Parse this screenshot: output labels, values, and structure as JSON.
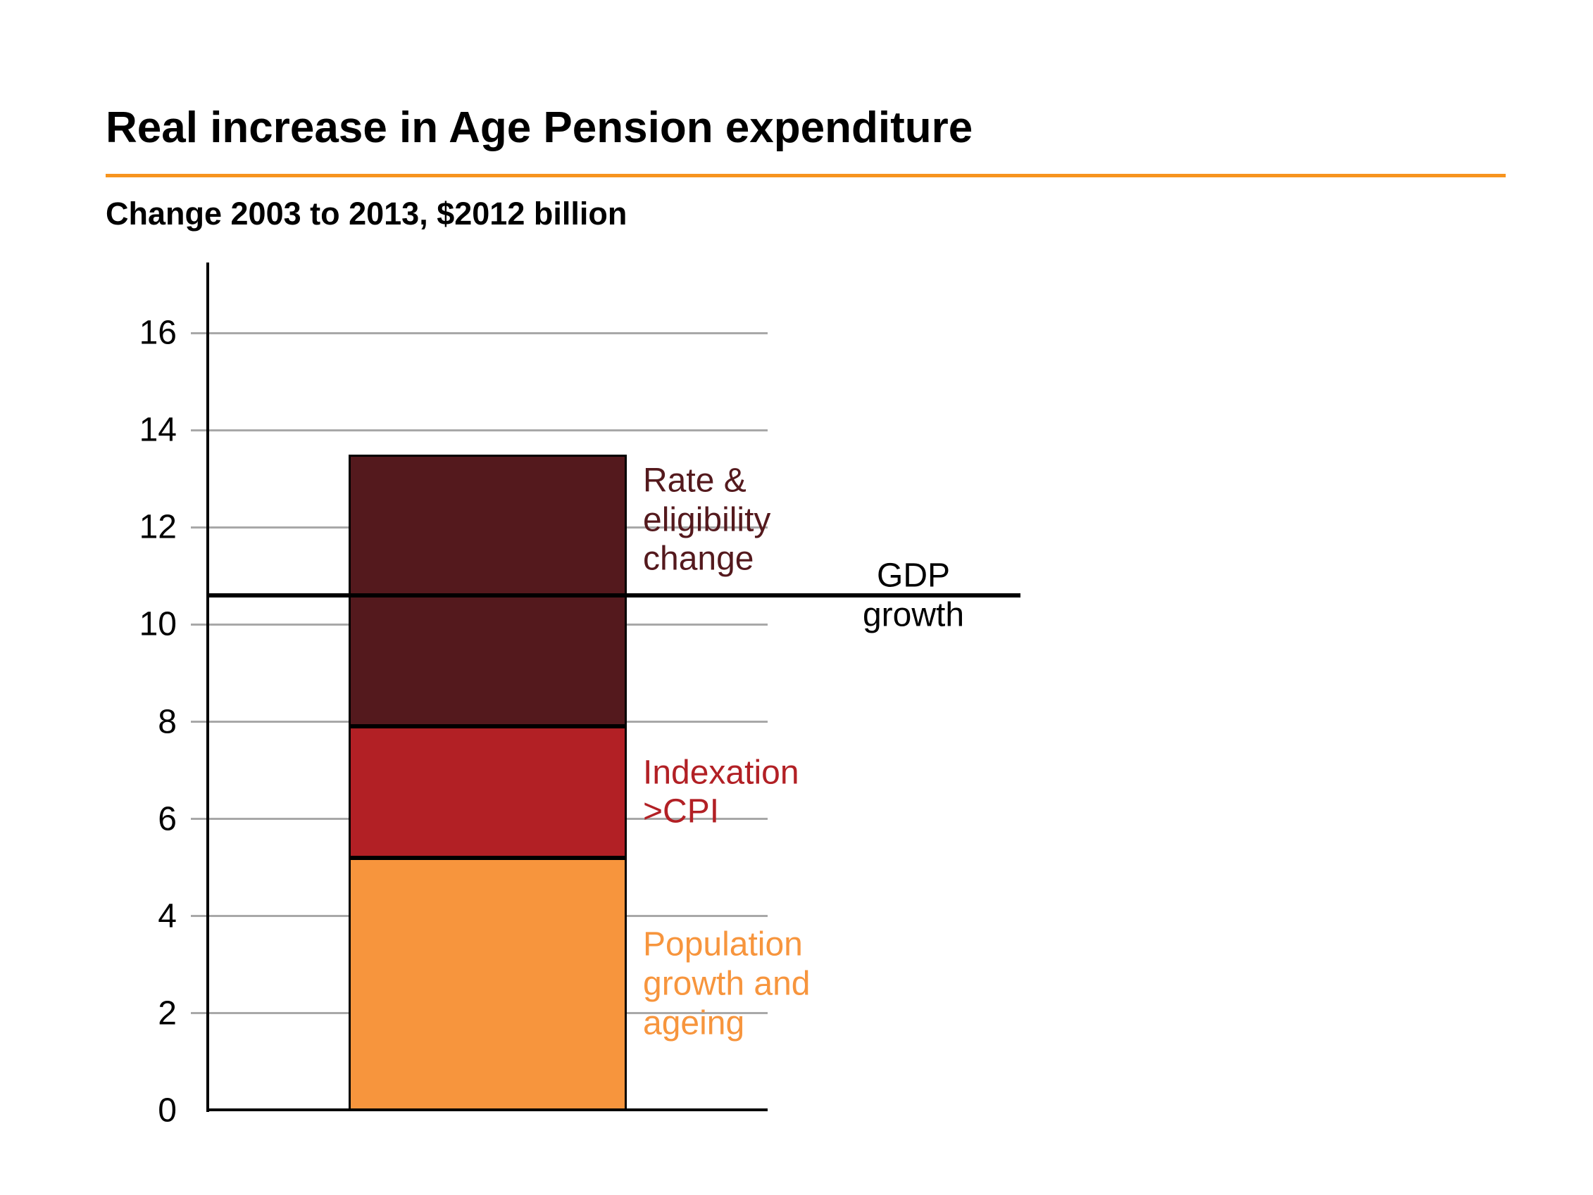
{
  "header": {
    "title": "Real increase in Age Pension expenditure",
    "subtitle": "Change 2003 to 2013, $2012 billion"
  },
  "colors": {
    "accent_rule": "#F7941E",
    "axis": "#000000",
    "gridline": "#A8A8A8",
    "reference_line": "#000000"
  },
  "chart_data": {
    "type": "bar",
    "stacked": true,
    "categories": [
      ""
    ],
    "series": [
      {
        "name": "Population growth and ageing",
        "values": [
          5.2
        ],
        "color": "#F7953D",
        "label_lines": [
          "Population",
          "growth and",
          "ageing"
        ],
        "label_center_value": 2.6
      },
      {
        "name": "Indexation >CPI",
        "values": [
          2.7
        ],
        "color": "#B22025",
        "label_lines": [
          "Indexation",
          ">CPI"
        ],
        "label_center_value": 6.55
      },
      {
        "name": "Rate & eligibility change",
        "values": [
          5.6
        ],
        "color": "#54191D",
        "label_lines": [
          "Rate &",
          "eligibility",
          "change"
        ],
        "label_center_value": 12.15
      }
    ],
    "reference_line": {
      "label": "GDP growth",
      "label_lines": [
        "GDP",
        "growth"
      ],
      "value": 10.6,
      "color": "#000000"
    },
    "ylim": [
      0,
      17.45
    ],
    "yticks": [
      0,
      2,
      4,
      6,
      8,
      10,
      12,
      14,
      16
    ],
    "grid": true,
    "legend": "inline labels beside bar"
  }
}
